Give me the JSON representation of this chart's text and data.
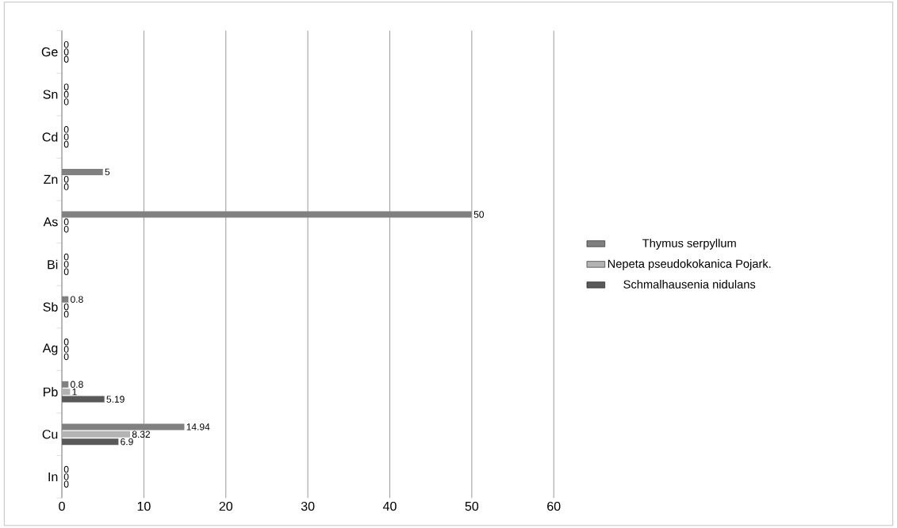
{
  "chart_data": {
    "type": "bar",
    "orientation": "horizontal",
    "categories": [
      "Ge",
      "Sn",
      "Cd",
      "Zn",
      "As",
      "Bi",
      "Sb",
      "Ag",
      "Pb",
      "Cu",
      "In"
    ],
    "series": [
      {
        "name": "Thymus serpyllum",
        "color": "#808080",
        "values": [
          0,
          0,
          0,
          5,
          50,
          0,
          0.8,
          0,
          0.8,
          14.94,
          0
        ]
      },
      {
        "name": "Nepeta pseudokokanica Pojark.",
        "color": "#b3b3b3",
        "values": [
          0,
          0,
          0,
          0,
          0,
          0,
          0,
          0,
          1,
          8.32,
          0
        ]
      },
      {
        "name": "Schmalhausenia nidulans",
        "color": "#595959",
        "values": [
          0,
          0,
          0,
          0,
          0,
          0,
          0,
          0,
          5.19,
          6.9,
          0
        ]
      }
    ],
    "xlim": [
      0,
      60
    ],
    "xticks": [
      0,
      10,
      20,
      30,
      40,
      50,
      60
    ],
    "grid": "x",
    "legend": "right",
    "data_labels": true
  }
}
